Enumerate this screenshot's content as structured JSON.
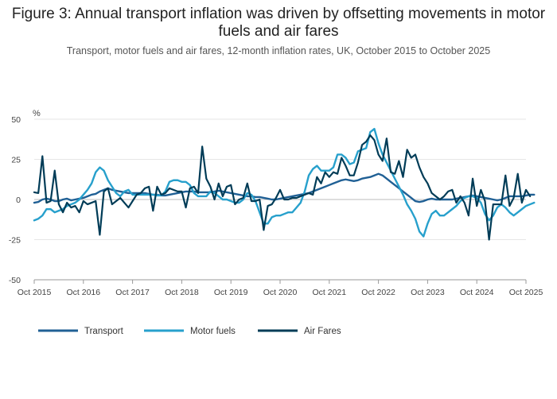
{
  "chart_data": {
    "type": "line",
    "title": "Figure 3: Annual transport inflation was driven by offsetting movements in motor fuels and air fares",
    "subtitle": "Transport, motor fuels and air fares, 12-month inflation rates, UK, October 2015 to October 2025",
    "xlabel": "",
    "ylabel": "%",
    "ylim": [
      -50,
      50
    ],
    "yticks": [
      50,
      25,
      0,
      -25,
      -50
    ],
    "xlim_months": [
      0,
      120
    ],
    "xticks": [
      {
        "label": "Oct 2015",
        "month": 0
      },
      {
        "label": "Oct 2016",
        "month": 12
      },
      {
        "label": "Oct 2017",
        "month": 24
      },
      {
        "label": "Oct 2018",
        "month": 36
      },
      {
        "label": "Oct 2019",
        "month": 48
      },
      {
        "label": "Oct 2020",
        "month": 60
      },
      {
        "label": "Oct 2021",
        "month": 72
      },
      {
        "label": "Oct 2022",
        "month": 84
      },
      {
        "label": "Oct 2023",
        "month": 96
      },
      {
        "label": "Oct 2024",
        "month": 108
      },
      {
        "label": "Oct 2025",
        "month": 120
      }
    ],
    "legend_position": "bottom-left",
    "series": [
      {
        "name": "Transport",
        "color": "#206095",
        "values": [
          -2,
          -1.5,
          0,
          0.5,
          0,
          -1,
          -1,
          0,
          0.5,
          -0.5,
          0,
          0.5,
          1,
          2,
          3,
          3.5,
          5,
          6,
          7,
          6,
          5.5,
          5,
          4.5,
          4,
          4,
          4,
          4,
          4,
          3.5,
          3,
          3,
          2.5,
          2.5,
          3,
          3.5,
          4,
          4.5,
          5,
          5,
          5,
          4.5,
          4.5,
          4.5,
          4.5,
          5,
          5.5,
          5,
          4.5,
          4,
          3.5,
          3,
          2.5,
          2,
          2,
          1.5,
          1.5,
          1,
          0.5,
          0,
          0,
          0.5,
          1,
          1.5,
          2,
          2.5,
          3,
          3.5,
          4,
          5,
          6,
          7,
          8,
          9,
          10,
          11,
          12,
          12.5,
          12,
          11.5,
          12,
          13,
          13.5,
          14,
          15,
          16,
          15,
          13,
          11,
          9,
          7,
          5,
          3,
          1,
          -1,
          -1.5,
          -1,
          0,
          0.5,
          0,
          0,
          0,
          0,
          0,
          0.5,
          1,
          1.5,
          2,
          2.5,
          2,
          1.5,
          1,
          0.5,
          0,
          -0.5,
          0,
          1,
          2,
          2,
          2,
          2,
          2.5,
          3,
          3
        ]
      },
      {
        "name": "Motor fuels",
        "color": "#27a0cc",
        "values": [
          -13,
          -12,
          -10,
          -6,
          -6,
          -8,
          -7,
          -6,
          -4,
          -3,
          -2,
          0,
          3,
          6,
          10,
          17,
          20,
          18,
          12,
          8,
          4,
          2,
          5,
          6,
          3,
          3,
          3,
          3,
          3,
          3,
          2.5,
          2.5,
          5,
          11,
          12,
          12,
          11,
          11,
          9,
          4,
          2,
          2,
          2,
          5,
          4,
          2,
          0,
          0,
          -1,
          -2,
          -2,
          0,
          4,
          3,
          -1,
          -8,
          -15,
          -15,
          -11,
          -10,
          -10,
          -9,
          -8,
          -8,
          -5,
          -2,
          5,
          15,
          19,
          21,
          18,
          18,
          18,
          20,
          28,
          28,
          26,
          22,
          23,
          30,
          31,
          32,
          42,
          44,
          35,
          28,
          23,
          18,
          13,
          8,
          3,
          -3,
          -7,
          -12,
          -20,
          -23,
          -15,
          -9,
          -7,
          -10,
          -10,
          -8,
          -6,
          -4,
          -1,
          1,
          2,
          2,
          1,
          -2,
          -9,
          -13,
          -10,
          -5,
          -3,
          -5,
          -8,
          -10,
          -8,
          -6,
          -4,
          -3,
          -2
        ]
      },
      {
        "name": "Air Fares",
        "color": "#003c57",
        "values": [
          4.5,
          4,
          27,
          -2,
          -1,
          18,
          -3,
          -8,
          -2,
          -5,
          -4,
          -8,
          -1,
          -3,
          -2,
          -1,
          -22,
          5,
          7,
          -3,
          -1,
          1,
          -2,
          -5,
          -1,
          3,
          4,
          7,
          8,
          -7,
          8,
          3,
          4,
          7,
          6,
          5,
          5,
          -5,
          7,
          8,
          4,
          33,
          13,
          8,
          0,
          10,
          2,
          8,
          9,
          -3,
          0,
          1,
          10,
          -1,
          -1,
          0,
          -19,
          -4,
          -3,
          1,
          6,
          0,
          0,
          1,
          1,
          2,
          3,
          4,
          3,
          14,
          10,
          17,
          14,
          17,
          16,
          26,
          21,
          15,
          15,
          23,
          34,
          36,
          40,
          37,
          28,
          24,
          38,
          17,
          16,
          24,
          14,
          31,
          26,
          28,
          20,
          14,
          10,
          4,
          2,
          0,
          2,
          5,
          6,
          -2,
          2,
          -2,
          -10,
          13,
          -4,
          6,
          -1,
          -25,
          -3,
          -3,
          -3,
          15,
          -4,
          1,
          16,
          -2,
          6,
          2
        ]
      }
    ]
  }
}
